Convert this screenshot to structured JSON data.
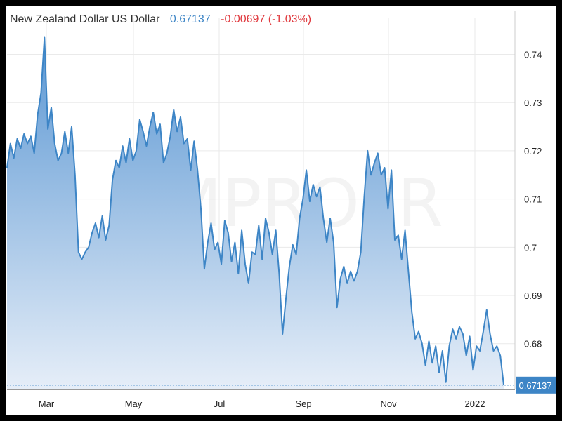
{
  "header": {
    "name": "New Zealand Dollar US Dollar",
    "price": "0.67137",
    "change": "-0.00697 (-1.03%)"
  },
  "watermark": "CMPRO.IR",
  "colors": {
    "line": "#3d85c6",
    "area_top": "#5b97d3",
    "area_bottom": "#e6eef8",
    "grid": "#eaeaea",
    "price_text": "#3d85c6",
    "change_text": "#e0393e",
    "label_bg": "#3d85c6"
  },
  "chart_data": {
    "type": "area",
    "x_tick_labels": [
      "Mar",
      "May",
      "Jul",
      "Sep",
      "Nov",
      "2022"
    ],
    "y_ticks": [
      "0.74",
      "0.73",
      "0.72",
      "0.71",
      "0.7",
      "0.69",
      "0.68"
    ],
    "ylim": [
      0.6705,
      0.7475
    ],
    "y_axis_position": "right",
    "grid": true,
    "last_value_label": "0.67137",
    "series": [
      {
        "values": [
          0.7165,
          0.7215,
          0.7185,
          0.7225,
          0.7205,
          0.7235,
          0.7215,
          0.723,
          0.7195,
          0.7275,
          0.732,
          0.7435,
          0.7245,
          0.729,
          0.7215,
          0.718,
          0.7195,
          0.724,
          0.7195,
          0.725,
          0.715,
          0.699,
          0.6975,
          0.699,
          0.7,
          0.703,
          0.705,
          0.702,
          0.7065,
          0.7015,
          0.7045,
          0.714,
          0.718,
          0.7165,
          0.721,
          0.7175,
          0.7225,
          0.718,
          0.72,
          0.7265,
          0.724,
          0.721,
          0.725,
          0.728,
          0.7235,
          0.7255,
          0.7175,
          0.7195,
          0.723,
          0.7285,
          0.724,
          0.727,
          0.7215,
          0.7225,
          0.716,
          0.722,
          0.716,
          0.708,
          0.6955,
          0.701,
          0.705,
          0.6995,
          0.701,
          0.6965,
          0.7055,
          0.703,
          0.697,
          0.701,
          0.6945,
          0.7035,
          0.6965,
          0.6925,
          0.699,
          0.6985,
          0.7045,
          0.6975,
          0.706,
          0.703,
          0.6985,
          0.7035,
          0.6945,
          0.682,
          0.6895,
          0.696,
          0.7005,
          0.6985,
          0.706,
          0.71,
          0.716,
          0.7095,
          0.713,
          0.7105,
          0.7125,
          0.706,
          0.701,
          0.706,
          0.701,
          0.6875,
          0.6935,
          0.696,
          0.6925,
          0.695,
          0.693,
          0.695,
          0.699,
          0.7105,
          0.72,
          0.715,
          0.7175,
          0.7195,
          0.715,
          0.7165,
          0.708,
          0.716,
          0.7015,
          0.7025,
          0.6975,
          0.7035,
          0.695,
          0.6865,
          0.681,
          0.6825,
          0.68,
          0.6755,
          0.6805,
          0.676,
          0.6795,
          0.674,
          0.6785,
          0.672,
          0.6795,
          0.683,
          0.681,
          0.6835,
          0.682,
          0.6775,
          0.6815,
          0.6745,
          0.6795,
          0.6785,
          0.6825,
          0.687,
          0.682,
          0.6785,
          0.6795,
          0.6775,
          0.6714
        ]
      }
    ]
  }
}
